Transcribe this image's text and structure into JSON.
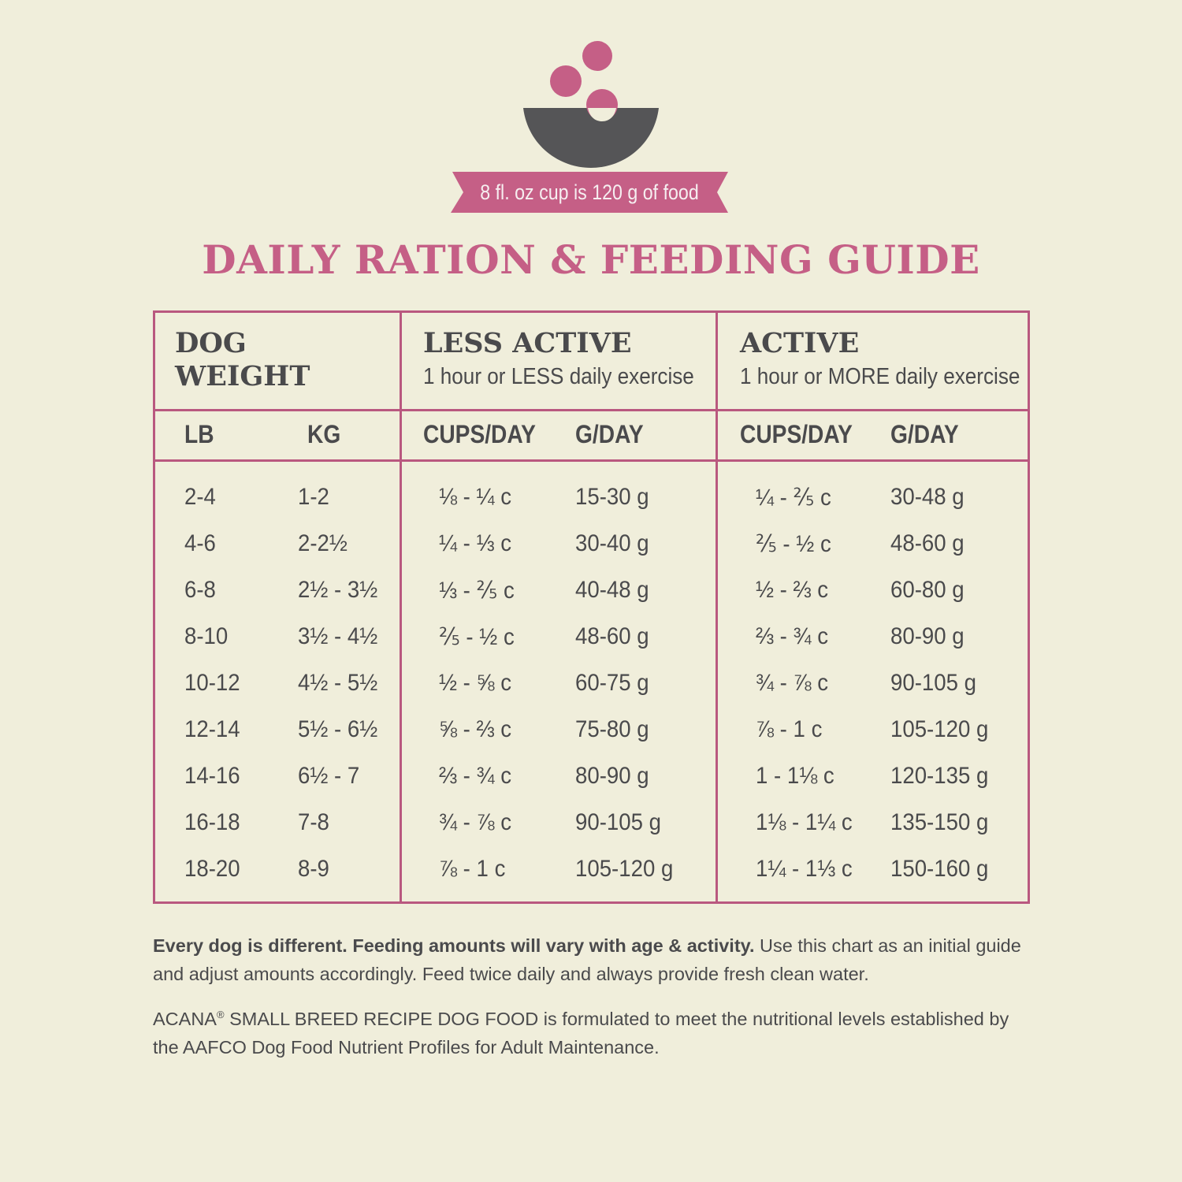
{
  "colors": {
    "pink": "#c55f86",
    "border": "#b9587f",
    "bowl": "#555557",
    "background": "#f0eedb"
  },
  "icon": "bowl-with-food-icon",
  "banner": "8 fl. oz cup is 120 g of food",
  "title": "DAILY RATION & FEEDING GUIDE",
  "headers": {
    "weight": [
      "DOG",
      "WEIGHT"
    ],
    "less_active": {
      "title": "LESS ACTIVE",
      "subtitle": "1 hour or LESS daily exercise"
    },
    "active": {
      "title": "ACTIVE",
      "subtitle": "1 hour or MORE daily exercise"
    },
    "columns": [
      "LB",
      "KG",
      "CUPS/DAY",
      "G/DAY",
      "CUPS/DAY",
      "G/DAY"
    ]
  },
  "rows": [
    [
      "2-4",
      "1-2",
      "⅛ - ¼ c",
      "15-30 g",
      "¼ - ⅖ c",
      "30-48 g"
    ],
    [
      "4-6",
      "2-2½",
      "¼ - ⅓ c",
      "30-40 g",
      "⅖ - ½ c",
      "48-60 g"
    ],
    [
      "6-8",
      "2½ - 3½",
      "⅓ - ⅖ c",
      "40-48 g",
      "½ - ⅔ c",
      "60-80 g"
    ],
    [
      "8-10",
      "3½ - 4½",
      "⅖ - ½ c",
      "48-60 g",
      "⅔ - ¾ c",
      "80-90 g"
    ],
    [
      "10-12",
      "4½ - 5½",
      "½ - ⅝ c",
      "60-75 g",
      "¾ - ⅞ c",
      "90-105 g"
    ],
    [
      "12-14",
      "5½ - 6½",
      "⅝ - ⅔ c",
      "75-80 g",
      "⅞ - 1 c",
      "105-120 g"
    ],
    [
      "14-16",
      "6½ - 7",
      "⅔ - ¾ c",
      "80-90 g",
      "1 - 1⅛ c",
      "120-135 g"
    ],
    [
      "16-18",
      "7-8",
      "¾ - ⅞ c",
      "90-105 g",
      "1⅛ - 1¼ c",
      "135-150 g"
    ],
    [
      "18-20",
      "8-9",
      "⅞ - 1 c",
      "105-120 g",
      "1¼ - 1⅓ c",
      "150-160 g"
    ]
  ],
  "notes": {
    "bold": "Every dog is different. Feeding amounts will vary with age & activity.",
    "text": " Use this chart as an initial guide and adjust amounts accordingly. Feed twice daily and always provide fresh clean water.",
    "brand": "ACANA",
    "brand_mark": "®",
    "aafco": " SMALL BREED RECIPE DOG FOOD is formulated to meet the nutritional levels established by the AAFCO Dog Food Nutrient Profiles for Adult Maintenance."
  }
}
